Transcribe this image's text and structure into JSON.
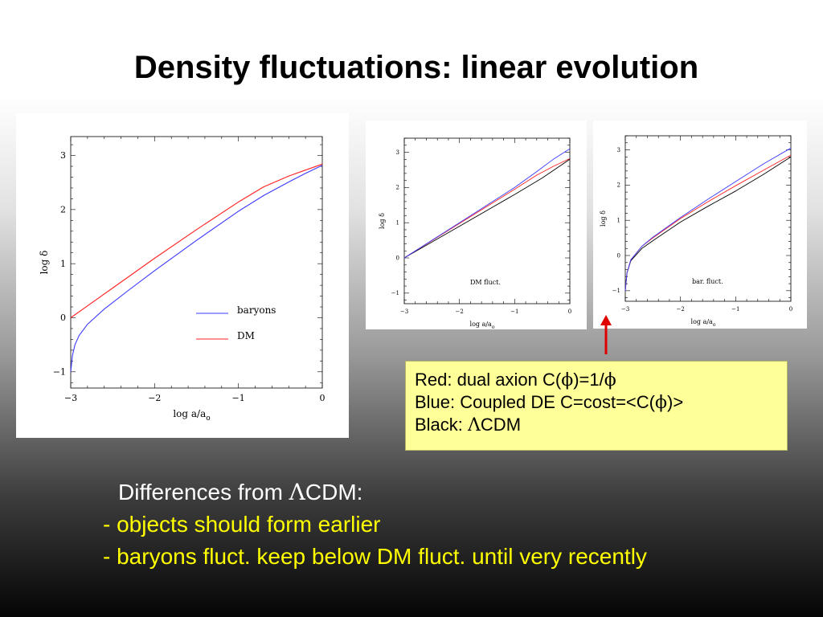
{
  "slide": {
    "title": "Density fluctuations: linear evolution",
    "legend_lines": [
      {
        "prefix": "Red: dual axion C(",
        "s1": "ϕ",
        "mid": ")=1/",
        "s2": "ϕ",
        "suffix": ""
      },
      {
        "prefix": "Blue: Coupled DE  C=cost=<C(",
        "s1": "ϕ",
        "mid": ")>",
        "s2": "",
        "suffix": ""
      },
      {
        "prefix": "Black: ",
        "s1": "Λ",
        "mid": "CDM",
        "s2": "",
        "suffix": ""
      }
    ],
    "notes": {
      "heading_prefix": "Differences from ",
      "heading_symbol": "Λ",
      "heading_suffix": "CDM:",
      "items": [
        "- objects should form earlier",
        "- baryons fluct. keep below DM fluct. until very recently"
      ]
    },
    "colors": {
      "red": "#ff2020",
      "blue": "#3a3aff",
      "black": "#000000",
      "legend_bg": "#ffff99",
      "arrow": "#e00000"
    }
  },
  "chart_data": [
    {
      "type": "line",
      "xlabel": "log a/a",
      "xlabel_sub": "o",
      "ylabel": "log δ",
      "xlim": [
        -3,
        0
      ],
      "ylim": [
        -1.3,
        3.35
      ],
      "xticks": [
        -3,
        -2,
        -1,
        0
      ],
      "yticks": [
        -1,
        0,
        1,
        2,
        3
      ],
      "annotation": "",
      "series": [
        {
          "name": "baryons",
          "color": "blue",
          "x": [
            -3,
            -2.98,
            -2.95,
            -2.9,
            -2.8,
            -2.6,
            -2.3,
            -2.0,
            -1.5,
            -1.0,
            -0.7,
            -0.4,
            -0.2,
            0
          ],
          "y": [
            -1.0,
            -0.7,
            -0.5,
            -0.33,
            -0.12,
            0.16,
            0.52,
            0.87,
            1.43,
            1.97,
            2.26,
            2.51,
            2.67,
            2.82
          ]
        },
        {
          "name": "DM",
          "color": "red",
          "x": [
            -3,
            -2.5,
            -2.0,
            -1.5,
            -1.0,
            -0.7,
            -0.4,
            -0.2,
            0
          ],
          "y": [
            0.0,
            0.55,
            1.1,
            1.63,
            2.14,
            2.42,
            2.62,
            2.73,
            2.84
          ]
        }
      ],
      "legend": [
        "baryons",
        "DM"
      ],
      "legend_position": "lower-right"
    },
    {
      "type": "line",
      "xlabel": "log a/a",
      "xlabel_sub": "o",
      "ylabel": "log δ",
      "xlim": [
        -3,
        0
      ],
      "ylim": [
        -1.3,
        3.4
      ],
      "xticks": [
        -3,
        -2,
        -1,
        0
      ],
      "yticks": [
        -1,
        0,
        1,
        2,
        3
      ],
      "annotation": "DM fluct.",
      "series": [
        {
          "name": "",
          "color": "black",
          "x": [
            -3,
            -2,
            -1,
            -0.5,
            0
          ],
          "y": [
            0.0,
            0.9,
            1.8,
            2.27,
            2.8
          ]
        },
        {
          "name": "",
          "color": "red",
          "x": [
            -3,
            -2,
            -1,
            -0.6,
            -0.3,
            0
          ],
          "y": [
            0.0,
            0.98,
            1.95,
            2.35,
            2.6,
            2.82
          ]
        },
        {
          "name": "",
          "color": "blue",
          "x": [
            -3,
            -2,
            -1,
            -0.6,
            -0.3,
            0
          ],
          "y": [
            0.0,
            1.0,
            2.0,
            2.45,
            2.8,
            3.1
          ]
        }
      ]
    },
    {
      "type": "line",
      "xlabel": "log a/a",
      "xlabel_sub": "o",
      "ylabel": "log δ",
      "xlim": [
        -3,
        0
      ],
      "ylim": [
        -1.3,
        3.4
      ],
      "xticks": [
        -3,
        -2,
        -1,
        0
      ],
      "yticks": [
        -1,
        0,
        1,
        2,
        3
      ],
      "annotation": "bar. fluct.",
      "series": [
        {
          "name": "",
          "color": "black",
          "x": [
            -3,
            -2.97,
            -2.9,
            -2.7,
            -2.5,
            -2,
            -1.5,
            -1,
            -0.5,
            0
          ],
          "y": [
            -1.0,
            -0.5,
            -0.15,
            0.2,
            0.42,
            0.95,
            1.4,
            1.83,
            2.3,
            2.8
          ]
        },
        {
          "name": "",
          "color": "red",
          "x": [
            -3,
            -2.97,
            -2.9,
            -2.7,
            -2.5,
            -2,
            -1.5,
            -1,
            -0.5,
            0
          ],
          "y": [
            -1.0,
            -0.5,
            -0.12,
            0.26,
            0.5,
            1.05,
            1.53,
            1.98,
            2.42,
            2.85
          ]
        },
        {
          "name": "",
          "color": "blue",
          "x": [
            -3,
            -2.97,
            -2.9,
            -2.7,
            -2.5,
            -2,
            -1.5,
            -1,
            -0.5,
            0
          ],
          "y": [
            -1.0,
            -0.5,
            -0.12,
            0.26,
            0.52,
            1.08,
            1.6,
            2.1,
            2.6,
            3.05
          ]
        }
      ]
    }
  ]
}
